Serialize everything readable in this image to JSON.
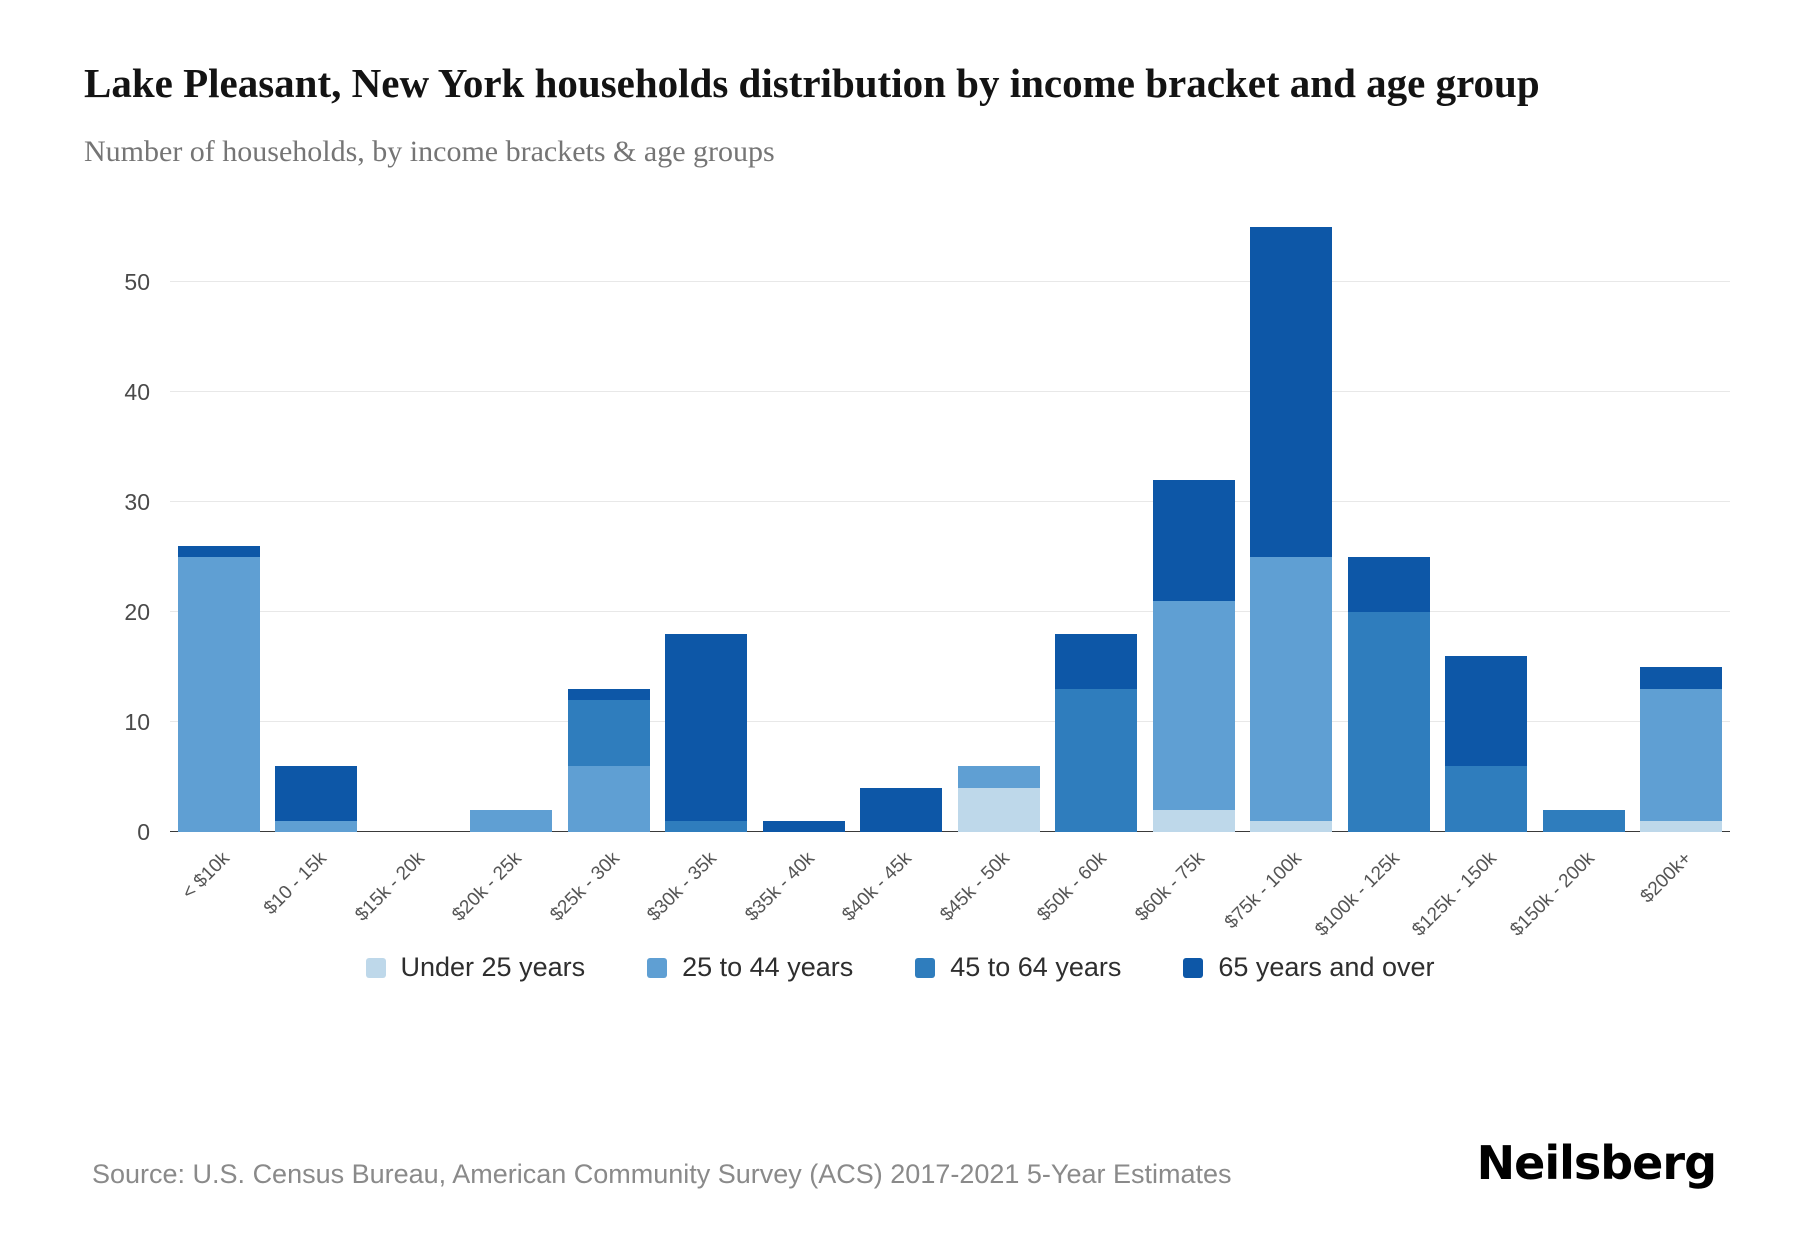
{
  "header": {
    "title": "Lake Pleasant, New York households distribution by income bracket and age group",
    "subtitle": "Number of households, by income brackets & age groups"
  },
  "chart_data": {
    "type": "bar",
    "stacked": true,
    "title": "Lake Pleasant, New York households distribution by income bracket and age group",
    "subtitle": "Number of households, by income brackets & age groups",
    "xlabel": "",
    "ylabel": "",
    "ylim": [
      0,
      55
    ],
    "yticks": [
      0,
      10,
      20,
      30,
      40,
      50
    ],
    "grid": "horizontal",
    "legend_position": "bottom",
    "categories": [
      "< $10k",
      "$10 - 15k",
      "$15k - 20k",
      "$20k - 25k",
      "$25k - 30k",
      "$30k - 35k",
      "$35k - 40k",
      "$40k - 45k",
      "$45k - 50k",
      "$50k - 60k",
      "$60k - 75k",
      "$75k - 100k",
      "$100k - 125k",
      "$125k - 150k",
      "$150k - 200k",
      "$200k+"
    ],
    "series": [
      {
        "name": "Under 25 years",
        "color": "#bed8ea",
        "values": [
          0,
          0,
          0,
          0,
          0,
          0,
          0,
          0,
          4,
          0,
          2,
          1,
          0,
          0,
          0,
          1
        ]
      },
      {
        "name": "25 to 44 years",
        "color": "#5f9fd3",
        "values": [
          25,
          1,
          0,
          2,
          6,
          0,
          0,
          0,
          2,
          0,
          19,
          24,
          0,
          0,
          0,
          12
        ]
      },
      {
        "name": "45 to 64 years",
        "color": "#2f7dbd",
        "values": [
          0,
          0,
          0,
          0,
          6,
          1,
          0,
          0,
          0,
          13,
          0,
          0,
          20,
          6,
          2,
          0
        ]
      },
      {
        "name": "65 years and over",
        "color": "#0d57a7",
        "values": [
          1,
          5,
          0,
          0,
          1,
          17,
          1,
          4,
          0,
          5,
          11,
          30,
          5,
          10,
          0,
          2
        ]
      }
    ],
    "totals": [
      26,
      6,
      0,
      2,
      13,
      18,
      1,
      4,
      6,
      18,
      32,
      55,
      25,
      16,
      2,
      15
    ]
  },
  "footer": {
    "source": "Source: U.S. Census Bureau, American Community Survey (ACS) 2017-2021 5-Year Estimates",
    "brand": "Neilsberg"
  }
}
